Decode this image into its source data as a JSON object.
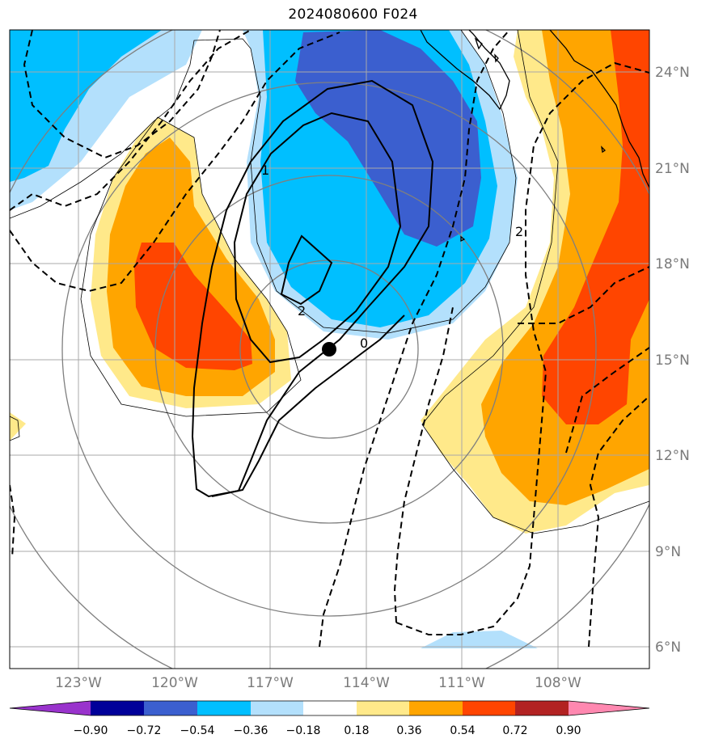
{
  "title": "2024080600 F024",
  "colors": {
    "m090": "#9933cc",
    "m072": "#000099",
    "m054": "#3b5fcf",
    "m036": "#00bfff",
    "m018": "#b3e0fc",
    "zero": "#ffffff",
    "p018": "#ffe98a",
    "p036": "#ffa500",
    "p054": "#ff4500",
    "p072": "#b22222",
    "p090": "#ff88b0",
    "grid": "#a8a8a8",
    "rings": "#7f7f7f",
    "coast": "#000000"
  },
  "map": {
    "lon_labels": [
      "123°W",
      "120°W",
      "117°W",
      "114°W",
      "111°W",
      "108°W"
    ],
    "lat_labels": [
      "24°N",
      "21°N",
      "18°N",
      "15°N",
      "12°N",
      "9°N",
      "6°N"
    ],
    "contour_labels": [
      "1",
      "2",
      "0",
      "2"
    ],
    "center_marker": "storm-center-dot"
  },
  "colorbar": {
    "labels": [
      "−0.90",
      "−0.72",
      "−0.54",
      "−0.36",
      "−0.18",
      "0.18",
      "0.36",
      "0.54",
      "0.72",
      "0.90"
    ]
  }
}
